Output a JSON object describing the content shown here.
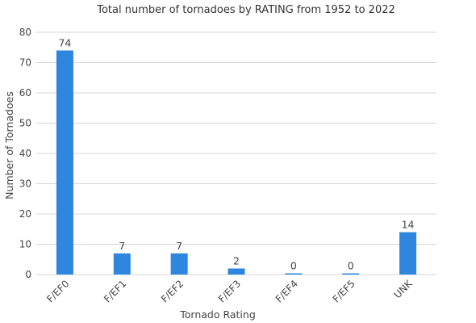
{
  "chart_data": {
    "type": "bar",
    "title": "Total number of tornadoes by RATING from 1952 to 2022",
    "xlabel": "Tornado Rating",
    "ylabel": "Number of Tornadoes",
    "categories": [
      "F/EF0",
      "F/EF1",
      "F/EF2",
      "F/EF3",
      "F/EF4",
      "F/EF5",
      "UNK"
    ],
    "values": [
      74,
      7,
      7,
      2,
      0,
      0,
      14
    ],
    "ylim": [
      0,
      80
    ],
    "yticks": [
      0,
      10,
      20,
      30,
      40,
      50,
      60,
      70,
      80
    ],
    "grid": true,
    "legend": "none",
    "bar_color": "#2e86de"
  }
}
